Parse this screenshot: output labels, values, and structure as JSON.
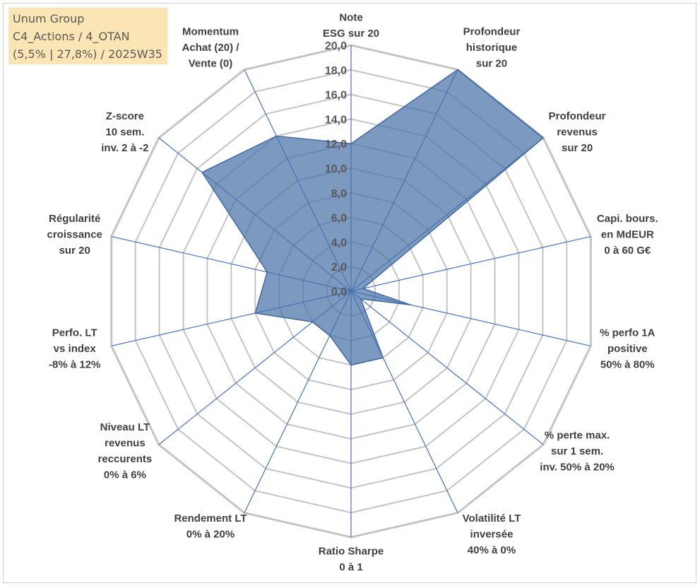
{
  "info": {
    "line1": "Unum Group",
    "line2": "C4_Actions / 4_OTAN",
    "line3": "(5,5% | 27,8%) / 2025W35"
  },
  "chart_data": {
    "type": "radar",
    "title": "",
    "range": [
      0,
      20
    ],
    "tick_values": [
      0,
      2,
      4,
      6,
      8,
      10,
      12,
      14,
      16,
      18,
      20
    ],
    "tick_labels": [
      "0,0",
      "2,0",
      "4,0",
      "6,0",
      "8,0",
      "10,0",
      "12,0",
      "14,0",
      "16,0",
      "18,0",
      "20,0"
    ],
    "axes": [
      [
        "Note",
        "ESG sur 20"
      ],
      [
        "Profondeur",
        "historique",
        "sur 20"
      ],
      [
        "Profondeur",
        "revenus",
        "sur 20"
      ],
      [
        "Capi. bours.",
        "en MdEUR",
        "0 à 60 G€"
      ],
      [
        "% perfo 1A",
        "positive",
        "50% à 80%"
      ],
      [
        "% perte max.",
        "sur 1 sem.",
        "inv. 50% à 20%"
      ],
      [
        "Volatilité LT",
        "inversée",
        "40% à 0%"
      ],
      [
        "Ratio Sharpe",
        "0 à 1"
      ],
      [
        "Rendement LT",
        "0% à 20%"
      ],
      [
        "Niveau LT",
        "revenus",
        "reccurents",
        "0% à 6%"
      ],
      [
        "Perfo. LT",
        "vs index",
        "-8% à 12%"
      ],
      [
        "Régularité",
        "croissance",
        "sur 20"
      ],
      [
        "Z-score",
        "10 sem.",
        "inv. 2 à -2"
      ],
      [
        "Momentum",
        "Achat (20) /",
        "Vente (0)"
      ]
    ],
    "values": [
      12.0,
      20.0,
      20.0,
      1.0,
      5.0,
      1.0,
      6.0,
      6.0,
      4.0,
      4.0,
      8.0,
      7.0,
      15.5,
      14.0
    ],
    "colors": {
      "fill": "#4a72a8",
      "stroke": "#4169a3",
      "grid": "#c4c4c4",
      "spoke": "#4472c4"
    }
  }
}
